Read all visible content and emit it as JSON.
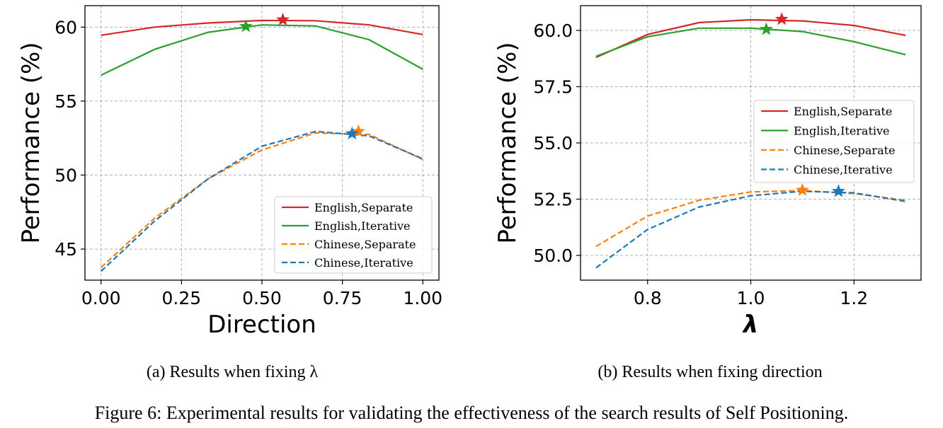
{
  "figure": {
    "caption": "Figure 6: Experimental results for validating the effectiveness of the search results of Self Positioning."
  },
  "chart_data": [
    {
      "type": "line",
      "caption": "(a) Results when fixing λ",
      "xlabel": "Direction",
      "ylabel": "Performance (%)",
      "xlim": [
        -0.05,
        1.05
      ],
      "ylim": [
        42.9,
        61.45
      ],
      "xticks": [
        0.0,
        0.25,
        0.5,
        0.75,
        1.0
      ],
      "xtick_labels": [
        "0.00",
        "0.25",
        "0.50",
        "0.75",
        "1.00"
      ],
      "yticks": [
        45,
        50,
        55,
        60
      ],
      "ytick_labels": [
        "45",
        "50",
        "55",
        "60"
      ],
      "grid": true,
      "legend_position": "lower right",
      "series": [
        {
          "name": "English,Separate",
          "color": "#d62728",
          "dash": "solid",
          "x": [
            0.0,
            0.167,
            0.333,
            0.5,
            0.667,
            0.833,
            1.0
          ],
          "y": [
            59.45,
            60.0,
            60.28,
            60.45,
            60.43,
            60.15,
            59.5
          ],
          "star": {
            "x": 0.565,
            "y": 60.5
          }
        },
        {
          "name": "English,Iterative",
          "color": "#2ca02c",
          "dash": "solid",
          "x": [
            0.0,
            0.167,
            0.333,
            0.5,
            0.667,
            0.833,
            1.0
          ],
          "y": [
            56.75,
            58.5,
            59.65,
            60.15,
            60.08,
            59.15,
            57.15
          ],
          "star": {
            "x": 0.45,
            "y": 60.05
          }
        },
        {
          "name": "Chinese,Separate",
          "color": "#ff7f0e",
          "dash": "dashed",
          "x": [
            0.0,
            0.167,
            0.333,
            0.5,
            0.667,
            0.833,
            1.0
          ],
          "y": [
            43.75,
            47.1,
            49.75,
            51.7,
            52.85,
            52.75,
            51.05
          ],
          "star": {
            "x": 0.8,
            "y": 52.95
          }
        },
        {
          "name": "Chinese,Iterative",
          "color": "#1f77b4",
          "dash": "dashed",
          "x": [
            0.0,
            0.167,
            0.333,
            0.5,
            0.667,
            0.833,
            1.0
          ],
          "y": [
            43.5,
            46.9,
            49.75,
            51.95,
            52.95,
            52.65,
            51.1
          ],
          "star": {
            "x": 0.78,
            "y": 52.8
          }
        }
      ]
    },
    {
      "type": "line",
      "caption": "(b) Results when fixing direction",
      "xlabel": "λ",
      "ylabel": "Performance (%)",
      "xlim": [
        0.67,
        1.33
      ],
      "ylim": [
        48.9,
        61.1
      ],
      "xticks": [
        0.8,
        1.0,
        1.2
      ],
      "xtick_labels": [
        "0.8",
        "1.0",
        "1.2"
      ],
      "yticks": [
        50.0,
        52.5,
        55.0,
        57.5,
        60.0
      ],
      "ytick_labels": [
        "50.0",
        "52.5",
        "55.0",
        "57.5",
        "60.0"
      ],
      "grid": true,
      "legend_position": "center right",
      "series": [
        {
          "name": "English,Separate",
          "color": "#d62728",
          "dash": "solid",
          "x": [
            0.7,
            0.8,
            0.9,
            1.0,
            1.1,
            1.2,
            1.3
          ],
          "y": [
            58.8,
            59.82,
            60.35,
            60.47,
            60.42,
            60.22,
            59.78
          ],
          "star": {
            "x": 1.06,
            "y": 60.5
          }
        },
        {
          "name": "English,Iterative",
          "color": "#2ca02c",
          "dash": "solid",
          "x": [
            0.7,
            0.8,
            0.9,
            1.0,
            1.1,
            1.2,
            1.3
          ],
          "y": [
            58.85,
            59.72,
            60.1,
            60.1,
            59.95,
            59.5,
            58.92
          ],
          "star": {
            "x": 1.03,
            "y": 60.05
          }
        },
        {
          "name": "Chinese,Separate",
          "color": "#ff7f0e",
          "dash": "dashed",
          "x": [
            0.7,
            0.8,
            0.9,
            1.0,
            1.1,
            1.2,
            1.3
          ],
          "y": [
            50.4,
            51.75,
            52.45,
            52.82,
            52.88,
            52.75,
            52.45
          ],
          "star": {
            "x": 1.1,
            "y": 52.9
          }
        },
        {
          "name": "Chinese,Iterative",
          "color": "#1f77b4",
          "dash": "dashed",
          "x": [
            0.7,
            0.8,
            0.9,
            1.0,
            1.1,
            1.2,
            1.3
          ],
          "y": [
            49.45,
            51.15,
            52.15,
            52.65,
            52.85,
            52.78,
            52.4
          ],
          "star": {
            "x": 1.17,
            "y": 52.85
          }
        }
      ]
    }
  ]
}
